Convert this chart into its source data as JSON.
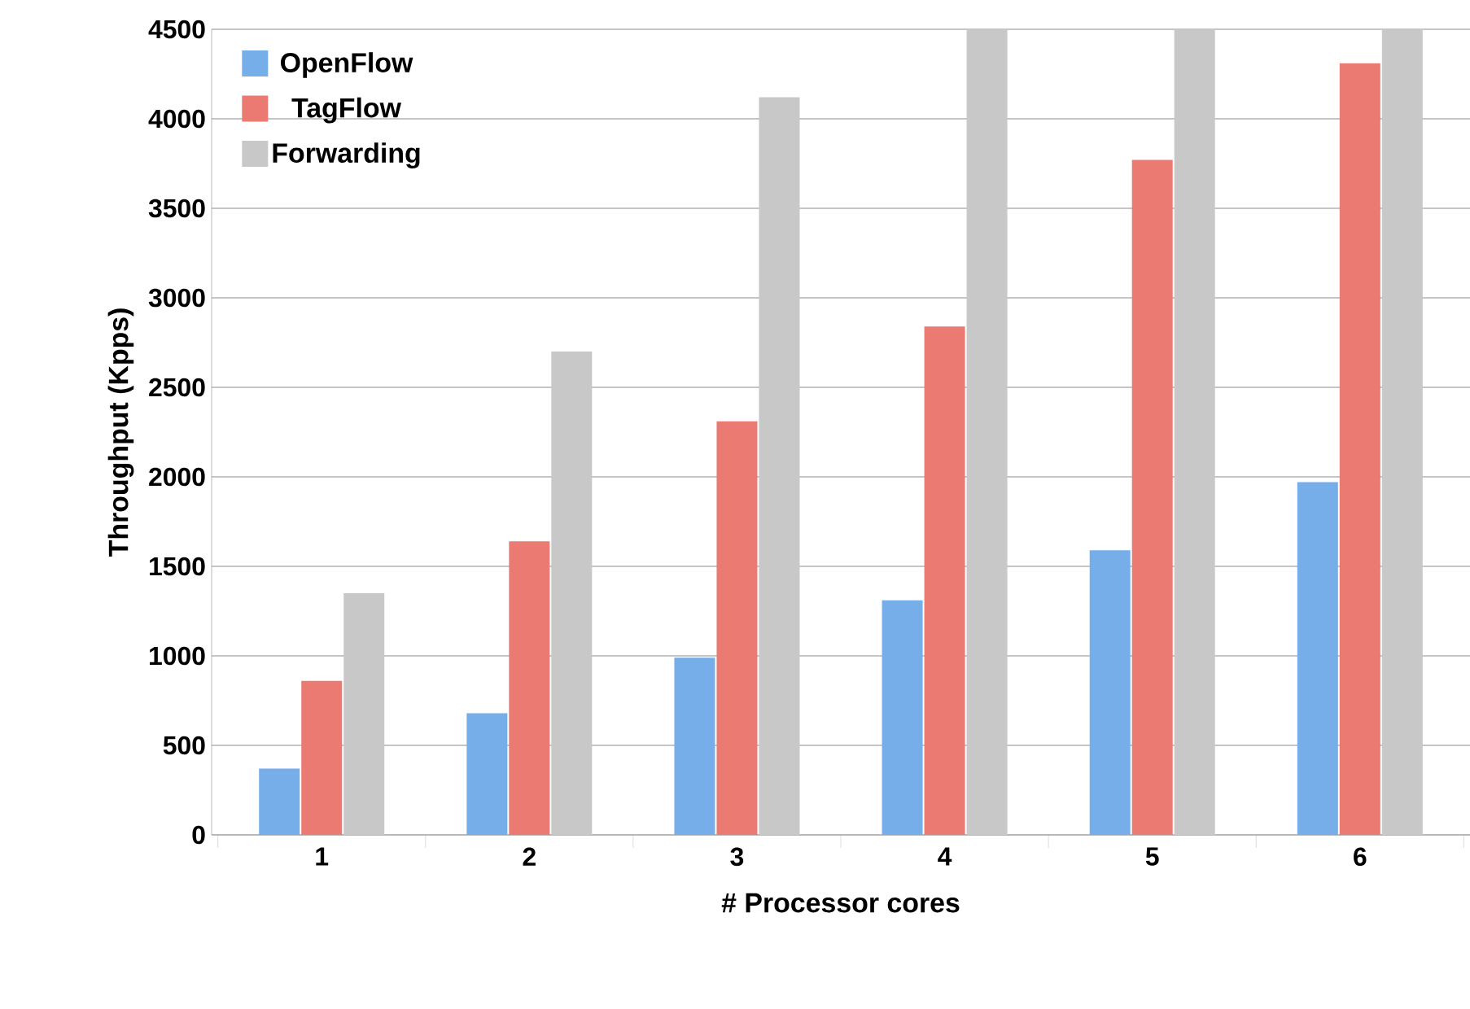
{
  "chart_data": {
    "type": "bar",
    "xlabel": "# Processor cores",
    "ylabel": "Throughput (Kpps)",
    "categories": [
      "1",
      "2",
      "3",
      "4",
      "5",
      "6"
    ],
    "series": [
      {
        "name": "OpenFlow",
        "color": "#76aeea",
        "values": [
          370,
          680,
          990,
          1310,
          1590,
          1970
        ]
      },
      {
        "name": "TagFlow",
        "color": "#ea7a72",
        "values": [
          860,
          1640,
          2310,
          2840,
          3770,
          4310
        ]
      },
      {
        "name": "Forwarding",
        "color": "#c8c8c8",
        "values": [
          1350,
          2700,
          4120,
          4500,
          4500,
          4500
        ]
      }
    ],
    "ylim": [
      0,
      4500
    ],
    "yticks": [
      0,
      500,
      1000,
      1500,
      2000,
      2500,
      3000,
      3500,
      4000,
      4500
    ],
    "grid": "y",
    "legend": "top left"
  }
}
